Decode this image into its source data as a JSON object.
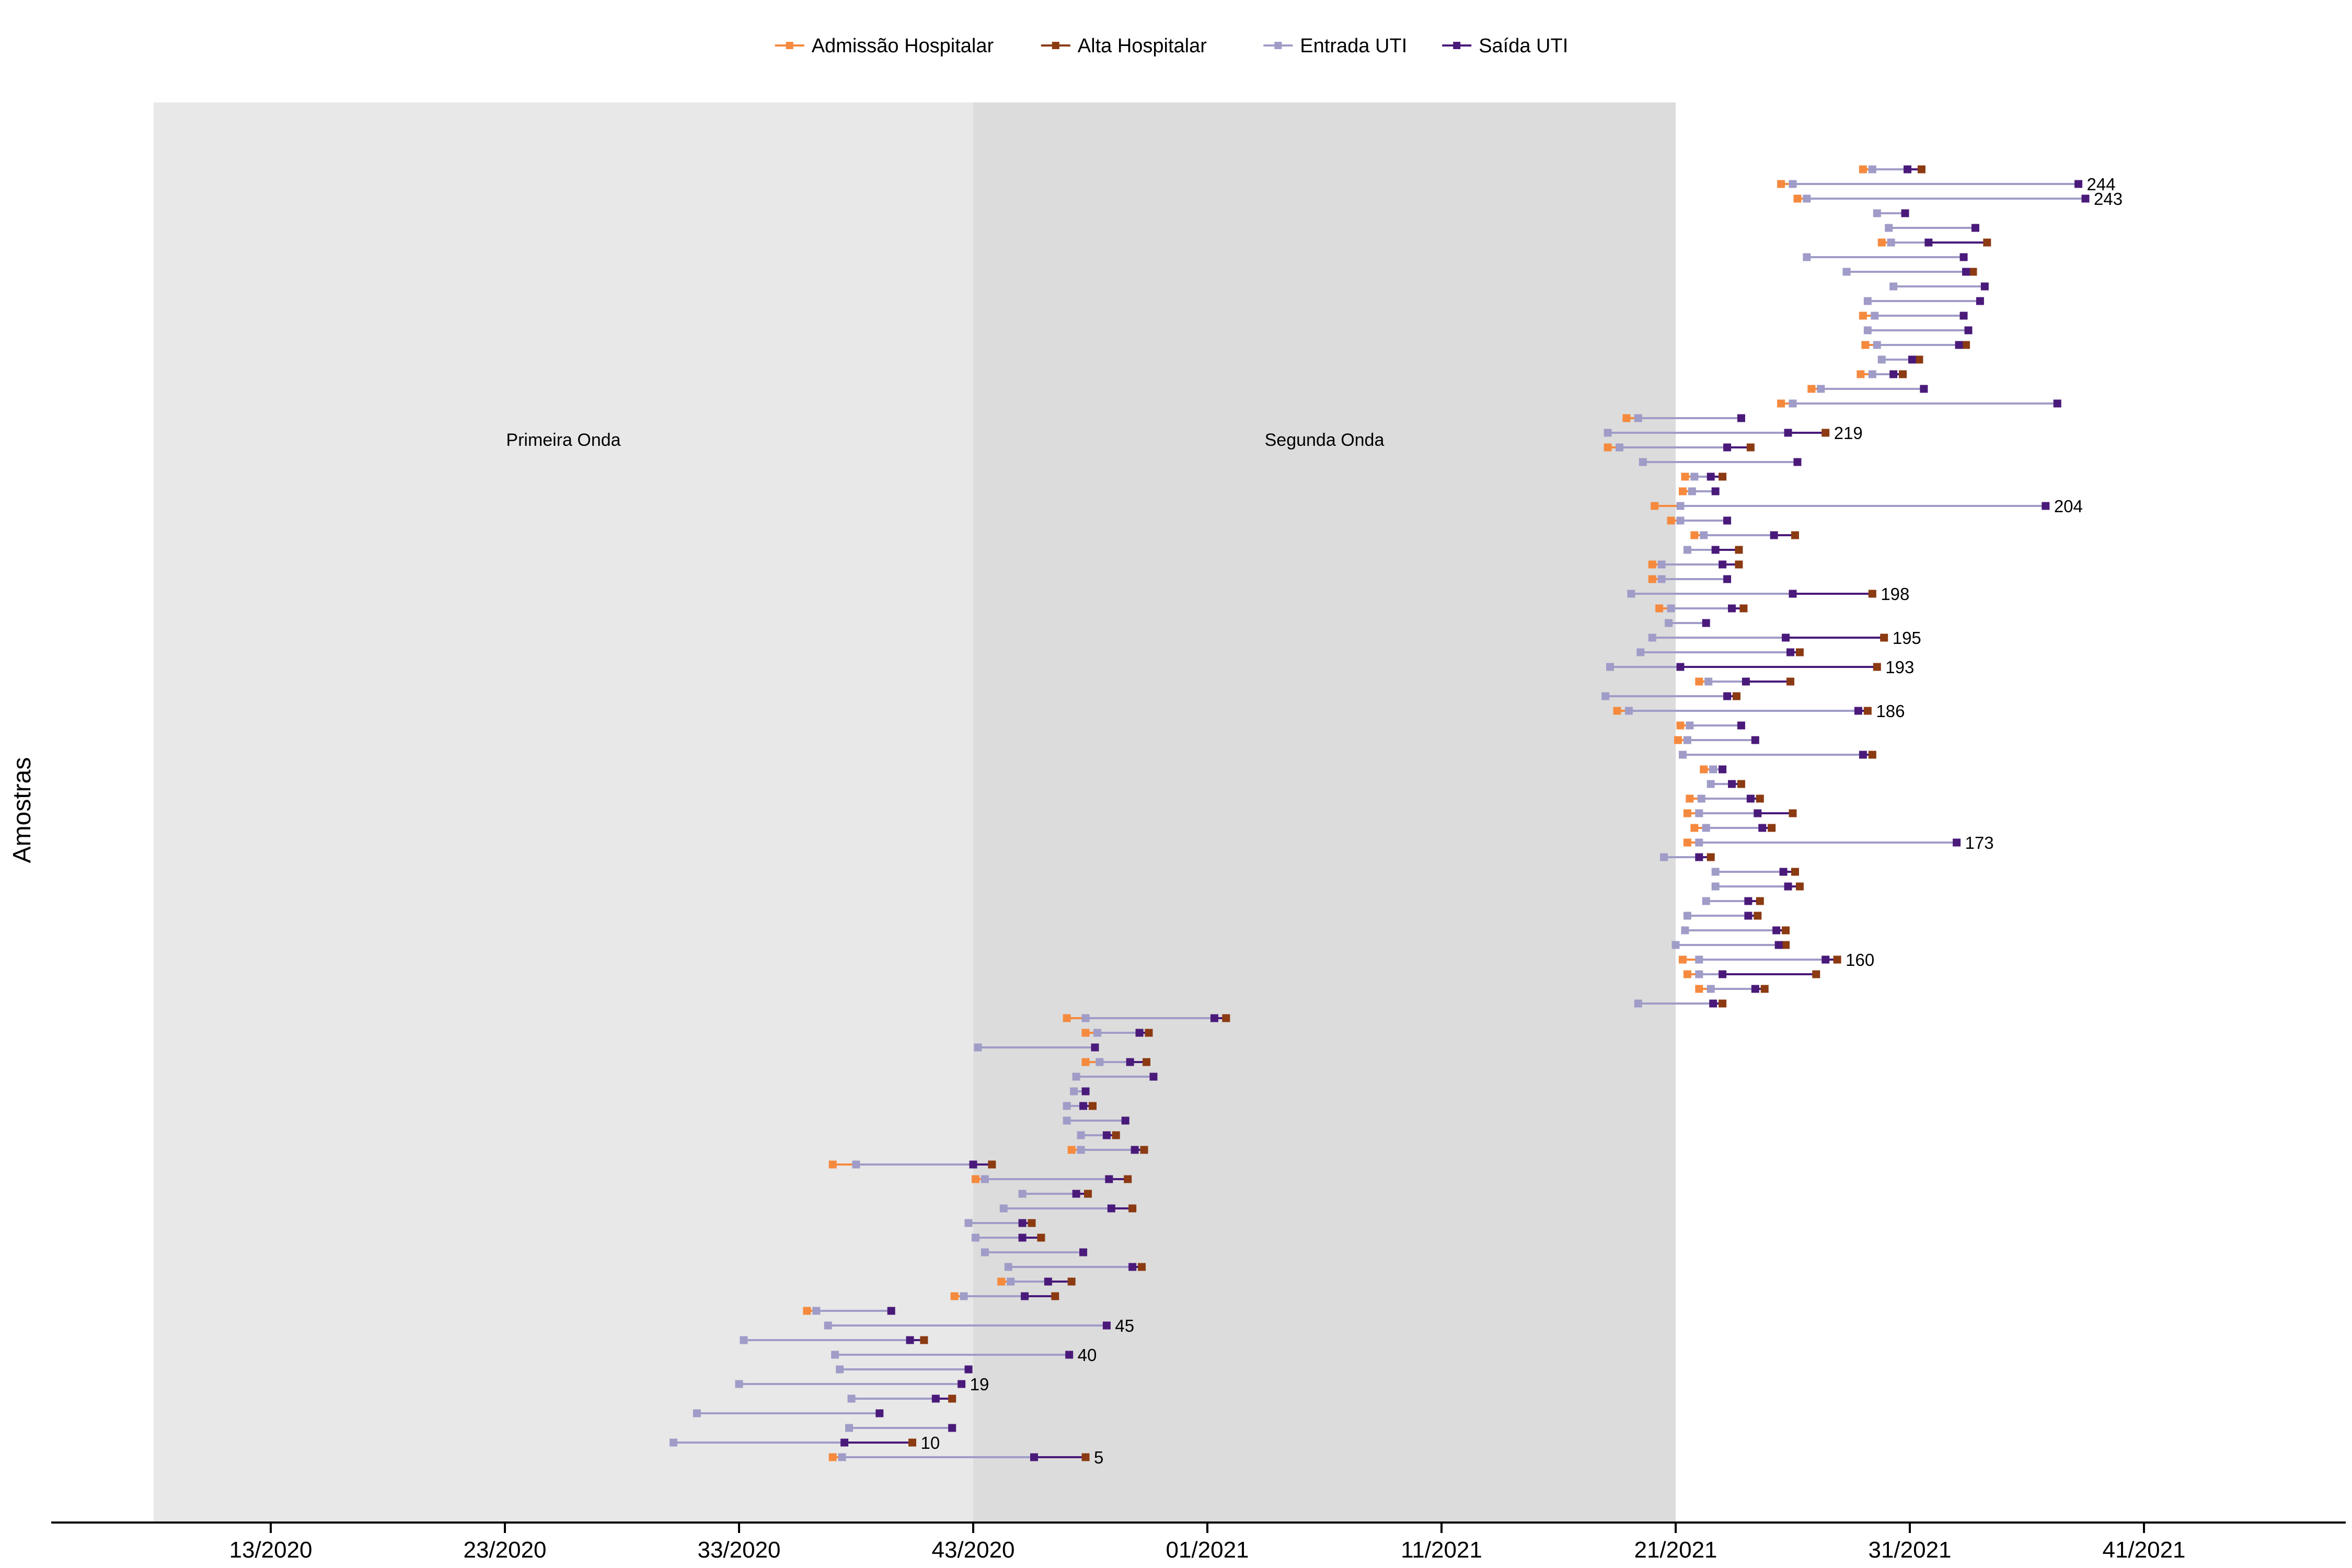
{
  "chart_data": {
    "type": "timeline",
    "ylabel": "Amostras",
    "x_unit": "epidemiological week (integer index from week 13/2020)",
    "xlim": [
      -9.5,
      88.5
    ],
    "x_ticks": [
      {
        "x": 0,
        "label": "13/2020"
      },
      {
        "x": 10,
        "label": "23/2020"
      },
      {
        "x": 20,
        "label": "33/2020"
      },
      {
        "x": 30,
        "label": "43/2020"
      },
      {
        "x": 40,
        "label": "01/2021"
      },
      {
        "x": 50,
        "label": "11/2021"
      },
      {
        "x": 60,
        "label": "21/2021"
      },
      {
        "x": 70,
        "label": "31/2021"
      },
      {
        "x": 80,
        "label": "41/2021"
      }
    ],
    "periods": [
      {
        "name": "Primeira Onda",
        "start": -5,
        "end": 30,
        "color": "#e8e8e8"
      },
      {
        "name": "Segunda Onda",
        "start": 30,
        "end": 60,
        "color": "#dcdcdc"
      }
    ],
    "legend": {
      "position": "top",
      "entries": [
        {
          "key": "admission",
          "label": "Admissão Hospitalar",
          "color": "#f58a3e"
        },
        {
          "key": "discharge",
          "label": "Alta Hospitalar",
          "color": "#8b3a12"
        },
        {
          "key": "icu_in",
          "label": "Entrada UTI",
          "color": "#a09cc8"
        },
        {
          "key": "icu_out",
          "label": "Saída UTI",
          "color": "#4a1a7a"
        }
      ]
    },
    "samples": [
      {
        "a": 24.0,
        "ui": 24.4,
        "uo": 32.6,
        "d": 34.8,
        "label": "5"
      },
      {
        "a": null,
        "ui": 17.2,
        "uo": 24.5,
        "d": 27.4,
        "label": "10"
      },
      {
        "a": null,
        "ui": 24.7,
        "uo": 29.1,
        "d": null,
        "label": ""
      },
      {
        "a": null,
        "ui": 18.2,
        "uo": 26.0,
        "d": null,
        "label": ""
      },
      {
        "a": null,
        "ui": 24.8,
        "uo": 28.4,
        "d": 29.1,
        "label": ""
      },
      {
        "a": null,
        "ui": 20.0,
        "uo": 29.5,
        "d": null,
        "label": "19"
      },
      {
        "a": null,
        "ui": 24.3,
        "uo": 29.8,
        "d": null,
        "label": ""
      },
      {
        "a": null,
        "ui": 24.1,
        "uo": 34.1,
        "d": null,
        "label": "40"
      },
      {
        "a": null,
        "ui": 20.2,
        "uo": 27.3,
        "d": 27.9,
        "label": ""
      },
      {
        "a": null,
        "ui": 23.8,
        "uo": 35.7,
        "d": null,
        "label": "45"
      },
      {
        "a": 22.9,
        "ui": 23.3,
        "uo": 26.5,
        "d": null,
        "label": ""
      },
      {
        "a": 29.2,
        "ui": 29.6,
        "uo": 32.2,
        "d": 33.5,
        "label": ""
      },
      {
        "a": 31.2,
        "ui": 31.6,
        "uo": 33.2,
        "d": 34.2,
        "label": ""
      },
      {
        "a": null,
        "ui": 31.5,
        "uo": 36.8,
        "d": 37.2,
        "label": ""
      },
      {
        "a": null,
        "ui": 30.5,
        "uo": 34.7,
        "d": null,
        "label": ""
      },
      {
        "a": null,
        "ui": 30.1,
        "uo": 32.1,
        "d": 32.9,
        "label": ""
      },
      {
        "a": null,
        "ui": 29.8,
        "uo": 32.1,
        "d": 32.5,
        "label": ""
      },
      {
        "a": null,
        "ui": 31.3,
        "uo": 35.9,
        "d": 36.8,
        "label": ""
      },
      {
        "a": null,
        "ui": 32.1,
        "uo": 34.4,
        "d": 34.9,
        "label": ""
      },
      {
        "a": 30.1,
        "ui": 30.5,
        "uo": 35.8,
        "d": 36.6,
        "label": ""
      },
      {
        "a": 24.0,
        "ui": 25.0,
        "uo": 30.0,
        "d": 30.8,
        "label": ""
      },
      {
        "a": 34.2,
        "ui": 34.6,
        "uo": 36.9,
        "d": 37.3,
        "label": ""
      },
      {
        "a": null,
        "ui": 34.6,
        "uo": 35.7,
        "d": 36.1,
        "label": ""
      },
      {
        "a": null,
        "ui": 34.0,
        "uo": 36.5,
        "d": null,
        "label": ""
      },
      {
        "a": null,
        "ui": 34.0,
        "uo": 34.7,
        "d": 35.1,
        "label": ""
      },
      {
        "a": null,
        "ui": 34.3,
        "uo": 34.8,
        "d": null,
        "label": ""
      },
      {
        "a": null,
        "ui": 34.4,
        "uo": 37.7,
        "d": null,
        "label": ""
      },
      {
        "a": 34.8,
        "ui": 35.4,
        "uo": 36.7,
        "d": 37.4,
        "label": ""
      },
      {
        "a": null,
        "ui": 30.2,
        "uo": 35.2,
        "d": null,
        "label": ""
      },
      {
        "a": 34.8,
        "ui": 35.3,
        "uo": 37.1,
        "d": 37.5,
        "label": ""
      },
      {
        "a": 34.0,
        "ui": 34.8,
        "uo": 40.3,
        "d": 40.8,
        "label": ""
      },
      {
        "a": null,
        "ui": 58.4,
        "uo": 61.6,
        "d": 62.0,
        "label": ""
      },
      {
        "a": 61.0,
        "ui": 61.5,
        "uo": 63.4,
        "d": 63.8,
        "label": ""
      },
      {
        "a": 60.5,
        "ui": 61.0,
        "uo": 62.0,
        "d": 66.0,
        "label": ""
      },
      {
        "a": 60.3,
        "ui": 61.0,
        "uo": 66.4,
        "d": 66.9,
        "label": "160"
      },
      {
        "a": null,
        "ui": 60.0,
        "uo": 64.4,
        "d": 64.7,
        "label": ""
      },
      {
        "a": null,
        "ui": 60.4,
        "uo": 64.3,
        "d": 64.7,
        "label": ""
      },
      {
        "a": null,
        "ui": 60.5,
        "uo": 63.1,
        "d": 63.5,
        "label": ""
      },
      {
        "a": null,
        "ui": 61.3,
        "uo": 63.1,
        "d": 63.6,
        "label": ""
      },
      {
        "a": null,
        "ui": 61.7,
        "uo": 64.8,
        "d": 65.3,
        "label": ""
      },
      {
        "a": null,
        "ui": 61.7,
        "uo": 64.6,
        "d": 65.1,
        "label": ""
      },
      {
        "a": null,
        "ui": 59.5,
        "uo": 61.0,
        "d": 61.5,
        "label": ""
      },
      {
        "a": 60.5,
        "ui": 61.0,
        "uo": 72.0,
        "d": null,
        "label": "173"
      },
      {
        "a": 60.8,
        "ui": 61.3,
        "uo": 63.7,
        "d": 64.1,
        "label": ""
      },
      {
        "a": 60.5,
        "ui": 61.0,
        "uo": 63.5,
        "d": 65.0,
        "label": ""
      },
      {
        "a": 60.6,
        "ui": 61.1,
        "uo": 63.2,
        "d": 63.6,
        "label": ""
      },
      {
        "a": null,
        "ui": 61.5,
        "uo": 62.4,
        "d": 62.8,
        "label": ""
      },
      {
        "a": 61.2,
        "ui": 61.6,
        "uo": 62.0,
        "d": null,
        "label": ""
      },
      {
        "a": null,
        "ui": 60.3,
        "uo": 68.0,
        "d": 68.4,
        "label": ""
      },
      {
        "a": 60.1,
        "ui": 60.5,
        "uo": 63.4,
        "d": null,
        "label": ""
      },
      {
        "a": 60.2,
        "ui": 60.6,
        "uo": 62.8,
        "d": null,
        "label": ""
      },
      {
        "a": 57.5,
        "ui": 58.0,
        "uo": 67.8,
        "d": 68.2,
        "label": "186"
      },
      {
        "a": null,
        "ui": 57.0,
        "uo": 62.2,
        "d": 62.6,
        "label": ""
      },
      {
        "a": 61.0,
        "ui": 61.4,
        "uo": 63.0,
        "d": 64.9,
        "label": ""
      },
      {
        "a": null,
        "ui": 57.2,
        "uo": 60.2,
        "d": 68.6,
        "label": "193"
      },
      {
        "a": null,
        "ui": 58.5,
        "uo": 64.9,
        "d": 65.3,
        "label": ""
      },
      {
        "a": null,
        "ui": 59.0,
        "uo": 64.7,
        "d": 68.9,
        "label": "195"
      },
      {
        "a": null,
        "ui": 59.7,
        "uo": 61.3,
        "d": null,
        "label": ""
      },
      {
        "a": 59.3,
        "ui": 59.8,
        "uo": 62.4,
        "d": 62.9,
        "label": ""
      },
      {
        "a": null,
        "ui": 58.1,
        "uo": 65.0,
        "d": 68.4,
        "label": "198"
      },
      {
        "a": 59.0,
        "ui": 59.4,
        "uo": 62.2,
        "d": null,
        "label": ""
      },
      {
        "a": 59.0,
        "ui": 59.4,
        "uo": 62.0,
        "d": 62.7,
        "label": ""
      },
      {
        "a": null,
        "ui": 60.5,
        "uo": 61.7,
        "d": 62.7,
        "label": ""
      },
      {
        "a": 60.8,
        "ui": 61.2,
        "uo": 64.2,
        "d": 65.1,
        "label": ""
      },
      {
        "a": 59.8,
        "ui": 60.2,
        "uo": 62.2,
        "d": null,
        "label": ""
      },
      {
        "a": 59.1,
        "ui": 60.2,
        "uo": 75.8,
        "d": null,
        "label": "204"
      },
      {
        "a": 60.3,
        "ui": 60.7,
        "uo": 61.7,
        "d": null,
        "label": ""
      },
      {
        "a": 60.4,
        "ui": 60.8,
        "uo": 61.5,
        "d": 62.0,
        "label": ""
      },
      {
        "a": null,
        "ui": 58.6,
        "uo": 65.2,
        "d": null,
        "label": ""
      },
      {
        "a": 57.1,
        "ui": 57.6,
        "uo": 62.2,
        "d": 63.2,
        "label": ""
      },
      {
        "a": null,
        "ui": 57.1,
        "uo": 64.8,
        "d": 66.4,
        "label": "219"
      },
      {
        "a": 57.9,
        "ui": 58.4,
        "uo": 62.8,
        "d": null,
        "label": ""
      },
      {
        "a": 64.5,
        "ui": 65.0,
        "uo": 76.3,
        "d": null,
        "label": ""
      },
      {
        "a": 65.8,
        "ui": 66.2,
        "uo": 70.6,
        "d": null,
        "label": ""
      },
      {
        "a": 67.9,
        "ui": 68.4,
        "uo": 69.3,
        "d": 69.7,
        "label": ""
      },
      {
        "a": null,
        "ui": 68.8,
        "uo": 70.1,
        "d": 70.4,
        "label": ""
      },
      {
        "a": 68.1,
        "ui": 68.6,
        "uo": 72.1,
        "d": 72.4,
        "label": ""
      },
      {
        "a": null,
        "ui": 68.2,
        "uo": 72.5,
        "d": null,
        "label": ""
      },
      {
        "a": 68.0,
        "ui": 68.5,
        "uo": 72.3,
        "d": null,
        "label": ""
      },
      {
        "a": null,
        "ui": 68.2,
        "uo": 73.0,
        "d": null,
        "label": ""
      },
      {
        "a": null,
        "ui": 69.3,
        "uo": 73.2,
        "d": null,
        "label": ""
      },
      {
        "a": null,
        "ui": 67.3,
        "uo": 72.4,
        "d": 72.7,
        "label": ""
      },
      {
        "a": null,
        "ui": 65.6,
        "uo": 72.3,
        "d": null,
        "label": ""
      },
      {
        "a": 68.8,
        "ui": 69.2,
        "uo": 70.8,
        "d": 73.3,
        "label": ""
      },
      {
        "a": null,
        "ui": 69.1,
        "uo": 72.8,
        "d": null,
        "label": ""
      },
      {
        "a": null,
        "ui": 68.6,
        "uo": 69.8,
        "d": null,
        "label": ""
      },
      {
        "a": 65.2,
        "ui": 65.6,
        "uo": 77.5,
        "d": null,
        "label": "243"
      },
      {
        "a": 64.5,
        "ui": 65.0,
        "uo": 77.2,
        "d": null,
        "label": "244"
      },
      {
        "a": 68.0,
        "ui": 68.4,
        "uo": 69.9,
        "d": 70.5,
        "label": ""
      }
    ]
  }
}
